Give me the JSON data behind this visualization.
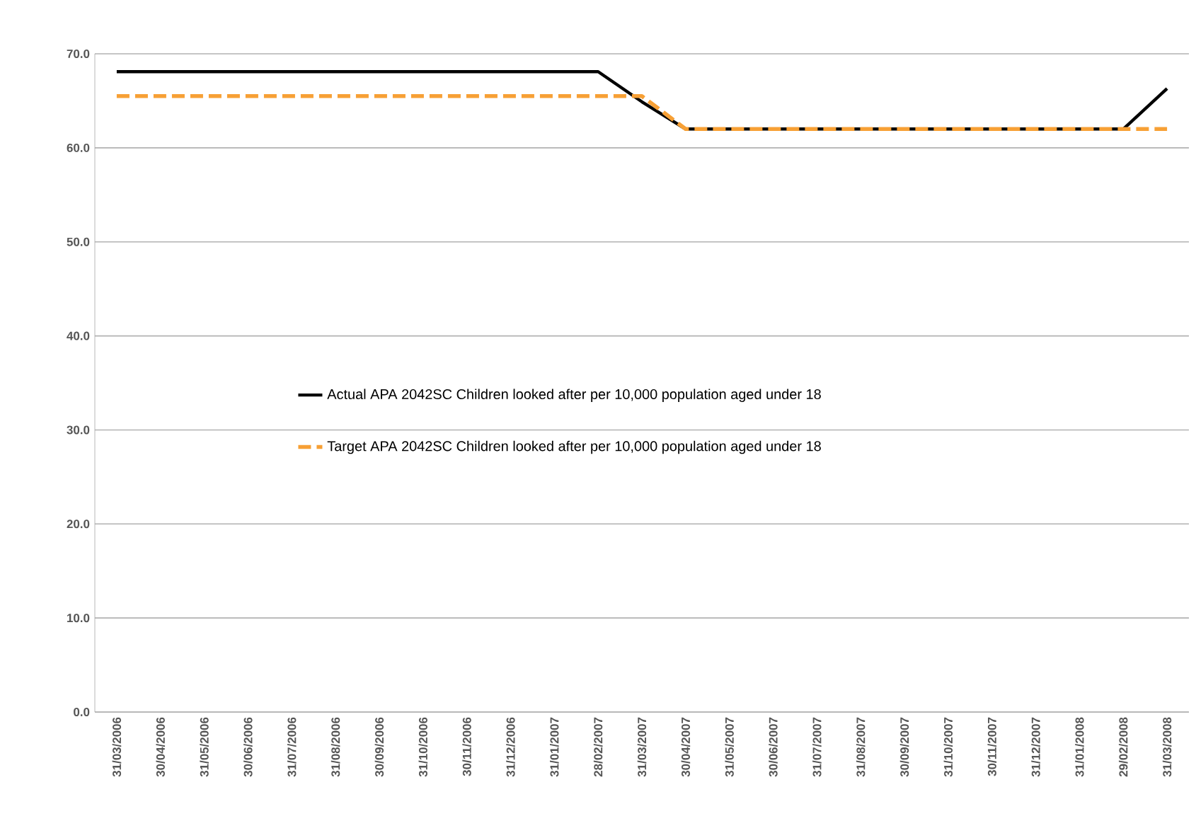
{
  "chart_data": {
    "type": "line",
    "categories": [
      "31/03/2006",
      "30/04/2006",
      "31/05/2006",
      "30/06/2006",
      "31/07/2006",
      "31/08/2006",
      "30/09/2006",
      "31/10/2006",
      "30/11/2006",
      "31/12/2006",
      "31/01/2007",
      "28/02/2007",
      "31/03/2007",
      "30/04/2007",
      "31/05/2007",
      "30/06/2007",
      "31/07/2007",
      "31/08/2007",
      "30/09/2007",
      "31/10/2007",
      "30/11/2007",
      "31/12/2007",
      "31/01/2008",
      "29/02/2008",
      "31/03/2008"
    ],
    "series": [
      {
        "name": "Actual APA 2042SC Children looked after per 10,000 population aged under 18",
        "color": "#000000",
        "line_style": "solid",
        "values": [
          68.1,
          68.1,
          68.1,
          68.1,
          68.1,
          68.1,
          68.1,
          68.1,
          68.1,
          68.1,
          68.1,
          68.1,
          64.9,
          62.0,
          62.0,
          62.0,
          62.0,
          62.0,
          62.0,
          62.0,
          62.0,
          62.0,
          62.0,
          62.0,
          66.3
        ]
      },
      {
        "name": "Target APA 2042SC Children looked after per 10,000 population aged under 18",
        "color": "#f7a035",
        "line_style": "dashed",
        "values": [
          65.5,
          65.5,
          65.5,
          65.5,
          65.5,
          65.5,
          65.5,
          65.5,
          65.5,
          65.5,
          65.5,
          65.5,
          65.5,
          62.0,
          62.0,
          62.0,
          62.0,
          62.0,
          62.0,
          62.0,
          62.0,
          62.0,
          62.0,
          62.0,
          62.0
        ]
      }
    ],
    "ylim": [
      0,
      70
    ],
    "yticks": [
      {
        "value": 0,
        "label": "0.0"
      },
      {
        "value": 10,
        "label": "10.0"
      },
      {
        "value": 20,
        "label": "20.0"
      },
      {
        "value": 30,
        "label": "30.0"
      },
      {
        "value": 40,
        "label": "40.0"
      },
      {
        "value": 50,
        "label": "50.0"
      },
      {
        "value": 60,
        "label": "60.0"
      },
      {
        "value": 70,
        "label": "70.0"
      }
    ],
    "grid": true,
    "legend": "center",
    "marker": "none"
  }
}
